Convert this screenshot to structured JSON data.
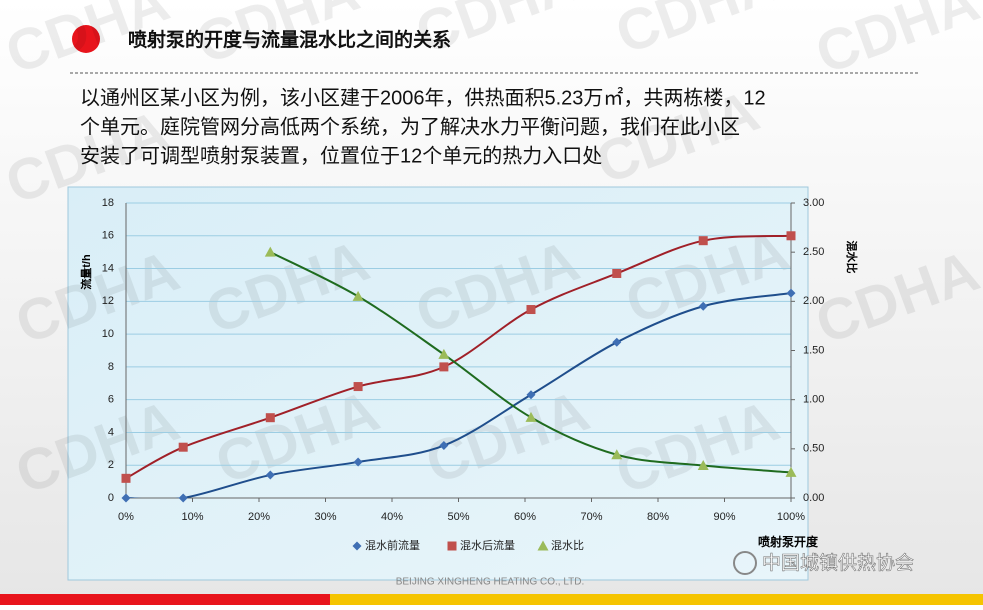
{
  "header": {
    "title": "喷射泵的开度与流量混水比之间的关系"
  },
  "body": {
    "lines": [
      "以通州区某小区为例，该小区建于2006年，供热面积5.23万㎡，共两栋楼，12",
      "个单元。庭院管网分高低两个系统，为了解决水力平衡问题，我们在此小区",
      "安装了可调型喷射泵装置，位置位于12个单元的热力入口处"
    ]
  },
  "watermark": "CDHA",
  "footer": {
    "company": "BEIJING XINGHENG HEATING CO., LTD.",
    "brand": "中国城镇供热协会"
  },
  "chart_data": {
    "type": "scatter",
    "x_label": "喷射泵开度",
    "y_label": "流量t/h",
    "y2_label": "混水比",
    "xlim": [
      0,
      100
    ],
    "xticks": [
      {
        "value": 0,
        "label": "0%"
      },
      {
        "value": 10,
        "label": "10%"
      },
      {
        "value": 20,
        "label": "20%"
      },
      {
        "value": 30,
        "label": "30%"
      },
      {
        "value": 40,
        "label": "40%"
      },
      {
        "value": 50,
        "label": "50%"
      },
      {
        "value": 60,
        "label": "60%"
      },
      {
        "value": 70,
        "label": "70%"
      },
      {
        "value": 80,
        "label": "80%"
      },
      {
        "value": 90,
        "label": "90%"
      },
      {
        "value": 100,
        "label": "100%"
      }
    ],
    "ylim": [
      0,
      18
    ],
    "yticks": [
      0,
      2,
      4,
      6,
      8,
      10,
      12,
      14,
      16,
      18
    ],
    "y2lim": [
      0,
      3
    ],
    "y2ticks": [
      {
        "value": 0,
        "label": "0.00"
      },
      {
        "value": 0.5,
        "label": "0.50"
      },
      {
        "value": 1,
        "label": "1.00"
      },
      {
        "value": 1.5,
        "label": "1.50"
      },
      {
        "value": 2,
        "label": "2.00"
      },
      {
        "value": 2.5,
        "label": "2.50"
      },
      {
        "value": 3,
        "label": "3.00"
      }
    ],
    "legend": "bottom",
    "series": [
      {
        "name": "混水前流量",
        "color": "#3f6fb4",
        "line_color": "#1f4e8c",
        "marker": "diamond",
        "x": [
          0,
          8.6,
          21.7,
          34.9,
          47.8,
          60.9,
          73.8,
          86.8,
          100
        ],
        "values": [
          0,
          0,
          1.4,
          2.2,
          3.2,
          6.3,
          9.5,
          11.7,
          12.5
        ]
      },
      {
        "name": "混水后流量",
        "color": "#c0504d",
        "line_color": "#a02028",
        "marker": "square",
        "x": [
          0,
          8.6,
          21.7,
          34.9,
          47.8,
          60.9,
          73.8,
          86.8,
          100
        ],
        "values": [
          1.2,
          3.1,
          4.9,
          6.8,
          8.0,
          11.5,
          13.7,
          15.7,
          16.0
        ]
      },
      {
        "name": "混水比",
        "color": "#9bbb59",
        "line_color": "#1f6b1f",
        "marker": "triangle",
        "axis": "y2",
        "x": [
          21.7,
          34.9,
          47.8,
          60.9,
          73.8,
          86.8,
          100
        ],
        "values": [
          2.5,
          2.05,
          1.46,
          0.82,
          0.44,
          0.33,
          0.26
        ]
      }
    ]
  }
}
